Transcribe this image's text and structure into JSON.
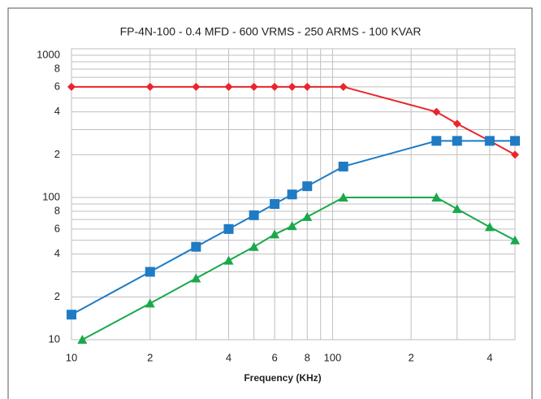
{
  "chart_data": {
    "type": "line",
    "title": "FP-4N-100 - 0.4 MFD - 600 VRMS - 250 ARMS - 100 KVAR",
    "x_label": "Frequency (KHz)",
    "log_x": true,
    "log_y": true,
    "grid": true,
    "xlim": [
      10,
      500
    ],
    "ylim": [
      10,
      1000
    ],
    "xticks": [
      10,
      {
        "value": 20,
        "label": "2"
      },
      {
        "value": 40,
        "label": "4"
      },
      {
        "value": 60,
        "label": "6"
      },
      {
        "value": 80,
        "label": "8"
      },
      100,
      {
        "value": 200,
        "label": "2"
      },
      {
        "value": 400,
        "label": "4"
      }
    ],
    "xminor": [
      30,
      50,
      70,
      90,
      300
    ],
    "yticks": [
      10,
      {
        "value": 20,
        "label": "2"
      },
      {
        "value": 40,
        "label": "4"
      },
      {
        "value": 60,
        "label": "6"
      },
      {
        "value": 80,
        "label": "8"
      },
      100,
      {
        "value": 200,
        "label": "2"
      },
      {
        "value": 400,
        "label": "4"
      },
      {
        "value": 600,
        "label": "6"
      },
      {
        "value": 800,
        "label": "8"
      },
      1000
    ],
    "yminor": [
      30,
      50,
      70,
      90,
      300,
      500,
      700,
      900
    ],
    "series": [
      {
        "color": "#e8262b",
        "marker": "diamond",
        "x": [
          10,
          20,
          30,
          40,
          50,
          60,
          70,
          80,
          110,
          250,
          300,
          400,
          500
        ],
        "values": [
          600,
          600,
          600,
          600,
          600,
          600,
          600,
          600,
          600,
          400,
          330,
          250,
          200
        ]
      },
      {
        "color": "#1f7bc4",
        "marker": "square",
        "x": [
          10,
          20,
          30,
          40,
          50,
          60,
          70,
          80,
          110,
          250,
          300,
          400,
          500
        ],
        "values": [
          15,
          30,
          45,
          60,
          75,
          90,
          105,
          120,
          165,
          250,
          250,
          250,
          250
        ]
      },
      {
        "color": "#1aa84a",
        "marker": "triangle",
        "x": [
          11,
          20,
          30,
          40,
          50,
          60,
          70,
          80,
          110,
          250,
          300,
          400,
          500
        ],
        "values": [
          10,
          18,
          27,
          36,
          45,
          55,
          63,
          73,
          100,
          100,
          83,
          62,
          50
        ]
      }
    ]
  }
}
